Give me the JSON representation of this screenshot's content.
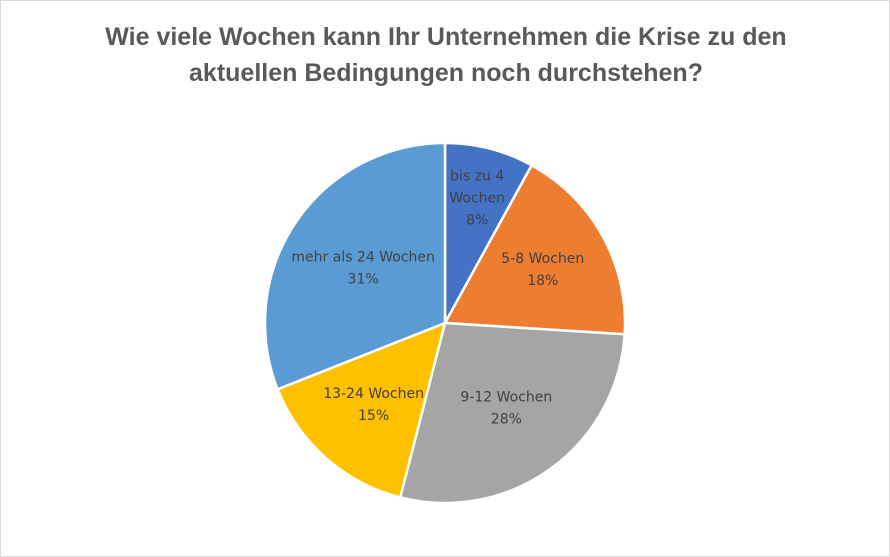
{
  "chart_data": {
    "type": "pie",
    "title_lines": [
      "Wie viele Wochen kann Ihr Unternehmen die Krise zu den",
      "aktuellen Bedingungen noch durchstehen?"
    ],
    "slices": [
      {
        "label_lines": [
          "bis zu 4",
          "Wochen"
        ],
        "value": 8,
        "value_label": "8%",
        "color": "#4472c4"
      },
      {
        "label_lines": [
          "5-8 Wochen"
        ],
        "value": 18,
        "value_label": "18%",
        "color": "#ed7d31"
      },
      {
        "label_lines": [
          "9-12 Wochen"
        ],
        "value": 28,
        "value_label": "28%",
        "color": "#a5a5a5"
      },
      {
        "label_lines": [
          "13-24 Wochen"
        ],
        "value": 15,
        "value_label": "15%",
        "color": "#ffc000"
      },
      {
        "label_lines": [
          "mehr als 24 Wochen"
        ],
        "value": 31,
        "value_label": "31%",
        "color": "#5b9bd5"
      }
    ],
    "start": "12 o'clock",
    "direction": "clockwise",
    "legend": "none"
  }
}
